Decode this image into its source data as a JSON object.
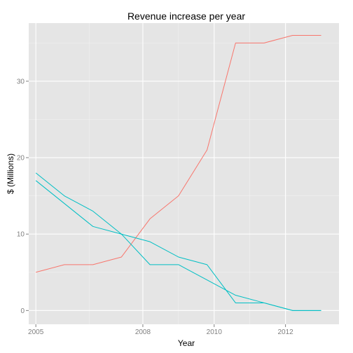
{
  "chart_data": {
    "type": "line",
    "title": "Revenue increase per year",
    "xlabel": "Year",
    "ylabel": "$ (Millions)",
    "xlim": [
      2004.8,
      2013.5
    ],
    "ylim": [
      -1.8,
      37.6
    ],
    "grid": true,
    "legend": "none",
    "x_ticks": [
      {
        "value": 2005,
        "label": "2005"
      },
      {
        "value": 2008,
        "label": "2008"
      },
      {
        "value": 2010,
        "label": "2010"
      },
      {
        "value": 2012,
        "label": "2012"
      }
    ],
    "x_minor_ticks": [
      2006.5,
      2009,
      2011
    ],
    "y_ticks": [
      {
        "value": 0,
        "label": "0"
      },
      {
        "value": 10,
        "label": "10"
      },
      {
        "value": 20,
        "label": "20"
      },
      {
        "value": 30,
        "label": "30"
      }
    ],
    "y_minor_ticks": [
      5,
      15,
      25,
      35
    ],
    "series": [
      {
        "color": "#f8766d",
        "x": [
          2005,
          2005.8,
          2006.6,
          2007.4,
          2008.2,
          2009.0,
          2009.8,
          2010.6,
          2011.4,
          2012.2,
          2013.0
        ],
        "y": [
          5,
          6,
          6,
          7,
          12,
          15,
          21,
          35,
          35,
          36,
          36
        ]
      },
      {
        "color": "#00bfc4",
        "x": [
          2005,
          2005.8,
          2006.6,
          2007.4,
          2008.2,
          2009.0,
          2009.8,
          2010.6,
          2011.4,
          2012.2,
          2013.0
        ],
        "y": [
          18,
          15,
          13,
          10,
          6,
          6,
          4,
          2,
          1,
          0,
          0
        ]
      },
      {
        "color": "#00bfc4",
        "x": [
          2005,
          2005.8,
          2006.6,
          2007.4,
          2008.2,
          2009.0,
          2009.8,
          2010.6,
          2011.4,
          2012.2,
          2013.0
        ],
        "y": [
          17,
          14,
          11,
          10,
          9,
          7,
          6,
          1,
          1,
          0,
          0
        ]
      }
    ]
  }
}
